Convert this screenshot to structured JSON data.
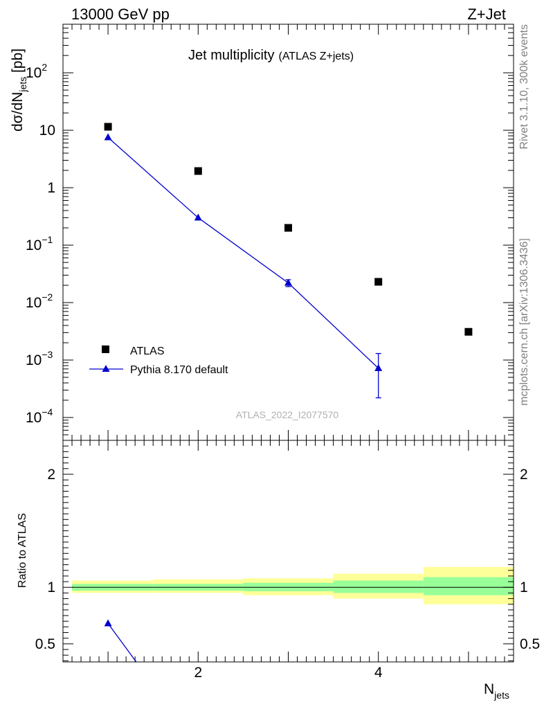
{
  "header": {
    "left": "13000 GeV pp",
    "right": "Z+Jet"
  },
  "side_labels": {
    "rivet": "Rivet 3.1.10,  300k events",
    "mcplots": "mcplots.cern.ch [arXiv:1306.3436]"
  },
  "colors": {
    "atlas": "#000000",
    "pythia": "#0000cc",
    "band_inner": "#99ff99",
    "band_outer": "#ffff99"
  },
  "chart_data": [
    {
      "type": "scatter",
      "title": "Jet multiplicity",
      "subtitle": "(ATLAS Z+jets)",
      "ylabel": "dσ/dN_jets [pb]",
      "xlabel": "N_jets",
      "yscale": "log",
      "xlim": [
        0.5,
        5.5
      ],
      "ylim": [
        4e-05,
        700
      ],
      "watermark": "ATLAS_2022_I2077570",
      "yticks": [
        {
          "v": 100,
          "base": "10",
          "exp": "2"
        },
        {
          "v": 10,
          "base": "10",
          "exp": ""
        },
        {
          "v": 1,
          "base": "1",
          "exp": ""
        },
        {
          "v": 0.1,
          "base": "10",
          "exp": "−1"
        },
        {
          "v": 0.01,
          "base": "10",
          "exp": "−2"
        },
        {
          "v": 0.001,
          "base": "10",
          "exp": "−3"
        },
        {
          "v": 0.0001,
          "base": "10",
          "exp": "−4"
        }
      ],
      "legend": {
        "position": "bottom-left",
        "entries": [
          "ATLAS",
          "Pythia 8.170 default"
        ]
      },
      "series": [
        {
          "name": "ATLAS",
          "marker": "square",
          "x": [
            1,
            2,
            3,
            4,
            5
          ],
          "y": [
            11.5,
            1.95,
            0.2,
            0.023,
            0.0031
          ]
        },
        {
          "name": "Pythia 8.170 default",
          "marker": "triangle",
          "x": [
            1,
            2,
            3,
            4
          ],
          "y": [
            7.5,
            0.3,
            0.022,
            0.00072
          ],
          "err_low": [
            null,
            null,
            0.019,
            0.00022
          ],
          "err_high": [
            null,
            null,
            0.025,
            0.0013
          ]
        }
      ]
    },
    {
      "type": "line",
      "ylabel": "Ratio to ATLAS",
      "xlabel": "N_jets",
      "xlim": [
        0.5,
        5.5
      ],
      "ylim": [
        0.34,
        2.3
      ],
      "xticks": [
        "2",
        "4"
      ],
      "yticks": [
        "0.5",
        "1",
        "2"
      ],
      "reference_line": 1,
      "bands": [
        {
          "xmin": 0.6,
          "xmax": 1.5,
          "inner": [
            0.97,
            1.03
          ],
          "outer": [
            0.95,
            1.06
          ]
        },
        {
          "xmin": 1.5,
          "xmax": 2.5,
          "inner": [
            0.97,
            1.03
          ],
          "outer": [
            0.95,
            1.07
          ]
        },
        {
          "xmin": 2.5,
          "xmax": 3.5,
          "inner": [
            0.965,
            1.04
          ],
          "outer": [
            0.93,
            1.08
          ]
        },
        {
          "xmin": 3.5,
          "xmax": 4.5,
          "inner": [
            0.95,
            1.06
          ],
          "outer": [
            0.9,
            1.12
          ]
        },
        {
          "xmin": 4.5,
          "xmax": 5.5,
          "inner": [
            0.93,
            1.09
          ],
          "outer": [
            0.85,
            1.18
          ]
        }
      ],
      "series": [
        {
          "name": "Pythia 8.170 default",
          "x": [
            1,
            1.35
          ],
          "y": [
            0.68,
            0.3
          ]
        }
      ]
    }
  ]
}
